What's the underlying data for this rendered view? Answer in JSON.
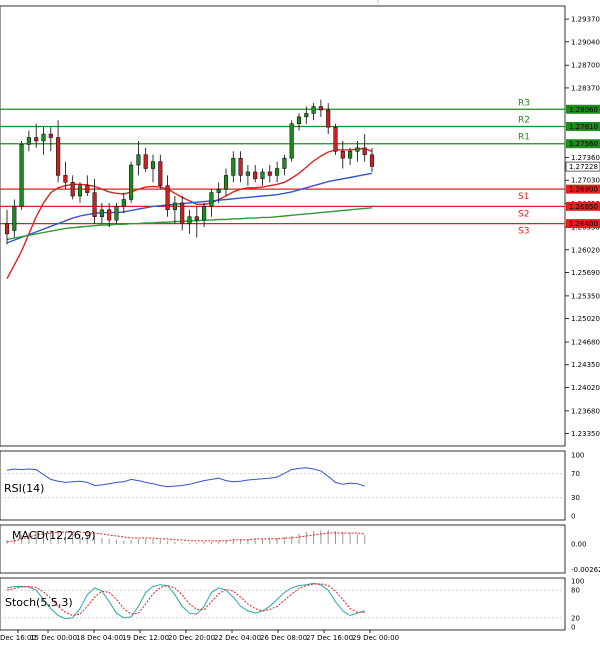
{
  "chart_data": {
    "type": "candlestick",
    "price_axis": {
      "ylim": [
        1.2317,
        1.2956
      ],
      "ticks": [
        "1.29370",
        "1.29040",
        "1.28700",
        "1.28370",
        "1.27360",
        "1.27030",
        "1.26690",
        "1.26350",
        "1.26020",
        "1.25690",
        "1.25350",
        "1.25020",
        "1.24680",
        "1.24350",
        "1.24020",
        "1.23680",
        "1.23350"
      ],
      "tick_values": [
        1.2937,
        1.2904,
        1.287,
        1.2837,
        1.2736,
        1.2703,
        1.2669,
        1.2635,
        1.2602,
        1.2569,
        1.2535,
        1.2502,
        1.2468,
        1.2435,
        1.2402,
        1.2368,
        1.2335
      ],
      "current_price": {
        "value": 1.27228,
        "label": "1.27228"
      }
    },
    "levels": [
      {
        "name": "R3",
        "value": 1.2806,
        "label": "1.28060",
        "color": "#1e8b1e"
      },
      {
        "name": "R2",
        "value": 1.2781,
        "label": "1.27810",
        "color": "#1e8b1e"
      },
      {
        "name": "R1",
        "value": 1.2756,
        "label": "1.27560",
        "color": "#1e8b1e"
      },
      {
        "name": "S1",
        "value": 1.269,
        "label": "1.26900",
        "color": "#e02020"
      },
      {
        "name": "S2",
        "value": 1.2665,
        "label": "1.26650",
        "color": "#e02020"
      },
      {
        "name": "S3",
        "value": 1.264,
        "label": "1.26400",
        "color": "#e02020"
      }
    ],
    "x_labels": [
      "Dec 16:00",
      "15 Dec 00:00",
      "18 Dec 04:00",
      "19 Dec 12:00",
      "20 Dec 20:00",
      "22 Dec 04:00",
      "26 Dec 08:00",
      "27 Dec 16:00",
      "29 Dec 00:00"
    ],
    "candles": [
      {
        "o": 1.264,
        "h": 1.266,
        "l": 1.261,
        "c": 1.2625
      },
      {
        "o": 1.263,
        "h": 1.2675,
        "l": 1.262,
        "c": 1.2665
      },
      {
        "o": 1.2665,
        "h": 1.276,
        "l": 1.266,
        "c": 1.2755
      },
      {
        "o": 1.2755,
        "h": 1.2775,
        "l": 1.2745,
        "c": 1.2765
      },
      {
        "o": 1.2765,
        "h": 1.2785,
        "l": 1.275,
        "c": 1.276
      },
      {
        "o": 1.276,
        "h": 1.278,
        "l": 1.274,
        "c": 1.277
      },
      {
        "o": 1.277,
        "h": 1.278,
        "l": 1.2745,
        "c": 1.2765
      },
      {
        "o": 1.2765,
        "h": 1.279,
        "l": 1.27,
        "c": 1.271
      },
      {
        "o": 1.271,
        "h": 1.273,
        "l": 1.269,
        "c": 1.27
      },
      {
        "o": 1.27,
        "h": 1.271,
        "l": 1.2675,
        "c": 1.268
      },
      {
        "o": 1.268,
        "h": 1.27,
        "l": 1.267,
        "c": 1.2695
      },
      {
        "o": 1.2695,
        "h": 1.271,
        "l": 1.268,
        "c": 1.2685
      },
      {
        "o": 1.2685,
        "h": 1.2705,
        "l": 1.264,
        "c": 1.265
      },
      {
        "o": 1.265,
        "h": 1.267,
        "l": 1.264,
        "c": 1.266
      },
      {
        "o": 1.266,
        "h": 1.267,
        "l": 1.2635,
        "c": 1.2645
      },
      {
        "o": 1.2645,
        "h": 1.267,
        "l": 1.264,
        "c": 1.2665
      },
      {
        "o": 1.2665,
        "h": 1.2685,
        "l": 1.2655,
        "c": 1.2675
      },
      {
        "o": 1.2675,
        "h": 1.273,
        "l": 1.267,
        "c": 1.2725
      },
      {
        "o": 1.2725,
        "h": 1.276,
        "l": 1.271,
        "c": 1.274
      },
      {
        "o": 1.274,
        "h": 1.275,
        "l": 1.2715,
        "c": 1.272
      },
      {
        "o": 1.272,
        "h": 1.274,
        "l": 1.27,
        "c": 1.273
      },
      {
        "o": 1.273,
        "h": 1.274,
        "l": 1.269,
        "c": 1.2695
      },
      {
        "o": 1.2695,
        "h": 1.271,
        "l": 1.265,
        "c": 1.266
      },
      {
        "o": 1.266,
        "h": 1.268,
        "l": 1.264,
        "c": 1.267
      },
      {
        "o": 1.267,
        "h": 1.268,
        "l": 1.263,
        "c": 1.264
      },
      {
        "o": 1.264,
        "h": 1.266,
        "l": 1.2625,
        "c": 1.265
      },
      {
        "o": 1.265,
        "h": 1.2665,
        "l": 1.262,
        "c": 1.2645
      },
      {
        "o": 1.2645,
        "h": 1.267,
        "l": 1.2635,
        "c": 1.2665
      },
      {
        "o": 1.2665,
        "h": 1.269,
        "l": 1.265,
        "c": 1.2685
      },
      {
        "o": 1.2685,
        "h": 1.27,
        "l": 1.267,
        "c": 1.269
      },
      {
        "o": 1.269,
        "h": 1.272,
        "l": 1.268,
        "c": 1.271
      },
      {
        "o": 1.271,
        "h": 1.2745,
        "l": 1.27,
        "c": 1.2735
      },
      {
        "o": 1.2735,
        "h": 1.2745,
        "l": 1.27,
        "c": 1.271
      },
      {
        "o": 1.271,
        "h": 1.2725,
        "l": 1.2695,
        "c": 1.2715
      },
      {
        "o": 1.2715,
        "h": 1.2725,
        "l": 1.27,
        "c": 1.2705
      },
      {
        "o": 1.2705,
        "h": 1.272,
        "l": 1.2695,
        "c": 1.2715
      },
      {
        "o": 1.2715,
        "h": 1.2725,
        "l": 1.27,
        "c": 1.271
      },
      {
        "o": 1.271,
        "h": 1.273,
        "l": 1.27,
        "c": 1.272
      },
      {
        "o": 1.272,
        "h": 1.274,
        "l": 1.271,
        "c": 1.2735
      },
      {
        "o": 1.2735,
        "h": 1.279,
        "l": 1.273,
        "c": 1.2785
      },
      {
        "o": 1.2785,
        "h": 1.28,
        "l": 1.2775,
        "c": 1.2795
      },
      {
        "o": 1.2795,
        "h": 1.281,
        "l": 1.2785,
        "c": 1.28
      },
      {
        "o": 1.28,
        "h": 1.2815,
        "l": 1.279,
        "c": 1.281
      },
      {
        "o": 1.281,
        "h": 1.282,
        "l": 1.2795,
        "c": 1.2805
      },
      {
        "o": 1.2805,
        "h": 1.2815,
        "l": 1.277,
        "c": 1.278
      },
      {
        "o": 1.278,
        "h": 1.2785,
        "l": 1.274,
        "c": 1.2745
      },
      {
        "o": 1.2745,
        "h": 1.276,
        "l": 1.272,
        "c": 1.2735
      },
      {
        "o": 1.2735,
        "h": 1.275,
        "l": 1.2725,
        "c": 1.2745
      },
      {
        "o": 1.2745,
        "h": 1.276,
        "l": 1.273,
        "c": 1.275
      },
      {
        "o": 1.275,
        "h": 1.277,
        "l": 1.273,
        "c": 1.274
      },
      {
        "o": 1.274,
        "h": 1.275,
        "l": 1.2715,
        "c": 1.2723
      }
    ],
    "moving_averages": [
      {
        "color": "#e02020",
        "values": [
          1.256,
          1.258,
          1.26,
          1.2625,
          1.265,
          1.267,
          1.2685,
          1.2692,
          1.2695,
          1.2697,
          1.2697,
          1.2696,
          1.2694,
          1.269,
          1.2686,
          1.2684,
          1.2683,
          1.2686,
          1.269,
          1.2693,
          1.2694,
          1.2693,
          1.269,
          1.2684,
          1.2678,
          1.2673,
          1.2668,
          1.2668,
          1.267,
          1.2675,
          1.268,
          1.2686,
          1.269,
          1.2692,
          1.2692,
          1.2693,
          1.2695,
          1.2697,
          1.27,
          1.2706,
          1.2713,
          1.2722,
          1.2731,
          1.2738,
          1.2744,
          1.2747,
          1.2747,
          1.2747,
          1.2748,
          1.2749,
          1.2745
        ]
      },
      {
        "color": "#3355cc",
        "values": [
          1.2612,
          1.2616,
          1.262,
          1.2624,
          1.2628,
          1.2632,
          1.2636,
          1.264,
          1.2644,
          1.2648,
          1.2651,
          1.2653,
          1.2655,
          1.2656,
          1.2656,
          1.2656,
          1.2657,
          1.2659,
          1.2661,
          1.2663,
          1.2665,
          1.2666,
          1.2667,
          1.2668,
          1.2669,
          1.267,
          1.2671,
          1.2672,
          1.2673,
          1.2674,
          1.2675,
          1.2676,
          1.2677,
          1.2678,
          1.2679,
          1.268,
          1.2681,
          1.2682,
          1.2684,
          1.2686,
          1.2689,
          1.2692,
          1.2695,
          1.2698,
          1.2701,
          1.2703,
          1.2705,
          1.2707,
          1.2709,
          1.2711,
          1.2713
        ]
      },
      {
        "color": "#2e9a3a",
        "values": [
          1.2617,
          1.2619,
          1.2621,
          1.2623,
          1.2625,
          1.2627,
          1.2629,
          1.2631,
          1.2633,
          1.2634,
          1.2635,
          1.2636,
          1.2637,
          1.2638,
          1.2638,
          1.2639,
          1.2639,
          1.264,
          1.264,
          1.2641,
          1.2641,
          1.2642,
          1.2642,
          1.2643,
          1.2643,
          1.2644,
          1.2644,
          1.2645,
          1.2645,
          1.2646,
          1.2646,
          1.2647,
          1.2647,
          1.2648,
          1.2648,
          1.2649,
          1.2649,
          1.265,
          1.2651,
          1.2652,
          1.2653,
          1.2654,
          1.2655,
          1.2656,
          1.2657,
          1.2658,
          1.2659,
          1.266,
          1.2661,
          1.2662,
          1.2663
        ]
      }
    ],
    "rsi": {
      "label": "RSI(14)",
      "ticks": [
        "100",
        "70",
        "30",
        "0"
      ],
      "tick_values": [
        100,
        70,
        30,
        0
      ],
      "color": "#3355cc",
      "values": [
        75,
        77,
        76,
        77,
        76,
        68,
        60,
        57,
        55,
        56,
        57,
        55,
        50,
        51,
        53,
        55,
        56,
        60,
        58,
        55,
        53,
        50,
        48,
        49,
        50,
        52,
        55,
        58,
        60,
        62,
        58,
        56,
        57,
        59,
        60,
        61,
        62,
        64,
        70,
        76,
        78,
        79,
        77,
        74,
        65,
        55,
        52,
        54,
        53,
        49
      ]
    },
    "macd": {
      "label": "MACD(12,26,9)",
      "ticks": [
        "0.00",
        "-0.00262"
      ],
      "histogram": [
        0.0004,
        0.0006,
        0.0009,
        0.0011,
        0.0013,
        0.0014,
        0.0014,
        0.0013,
        0.0012,
        0.0011,
        0.001,
        0.0009,
        0.0008,
        0.0006,
        0.0005,
        0.0004,
        0.0003,
        0.0004,
        0.0005,
        0.0005,
        0.0005,
        0.0004,
        0.0003,
        0.0002,
        0.0001,
        0.0001,
        0.0001,
        0.0002,
        0.0002,
        0.0003,
        0.0004,
        0.0005,
        0.0005,
        0.0005,
        0.0005,
        0.0005,
        0.0006,
        0.0006,
        0.0007,
        0.0008,
        0.001,
        0.0012,
        0.0013,
        0.0014,
        0.0014,
        0.0013,
        0.0012,
        0.0011,
        0.001,
        0.0009
      ],
      "signal": [
        0.0002,
        0.0003,
        0.0005,
        0.0007,
        0.0009,
        0.001,
        0.0011,
        0.0012,
        0.0012,
        0.0012,
        0.0012,
        0.0011,
        0.0011,
        0.001,
        0.0009,
        0.0008,
        0.0007,
        0.0006,
        0.0006,
        0.0006,
        0.0006,
        0.0005,
        0.0005,
        0.0004,
        0.0004,
        0.0003,
        0.0003,
        0.0003,
        0.0003,
        0.0003,
        0.0003,
        0.0004,
        0.0004,
        0.0004,
        0.0005,
        0.0005,
        0.0005,
        0.0005,
        0.0006,
        0.0006,
        0.0007,
        0.0008,
        0.0009,
        0.001,
        0.0011,
        0.0011,
        0.0011,
        0.0011,
        0.0011,
        0.001
      ]
    },
    "stoch": {
      "label": "Stoch(5,5,3)",
      "ticks": [
        "100",
        "80",
        "20",
        "0"
      ],
      "tick_values": [
        100,
        80,
        20,
        0
      ],
      "main": [
        85,
        88,
        88,
        87,
        80,
        60,
        40,
        25,
        18,
        20,
        40,
        70,
        85,
        78,
        55,
        30,
        20,
        22,
        45,
        75,
        88,
        92,
        90,
        70,
        45,
        30,
        28,
        45,
        75,
        85,
        80,
        65,
        45,
        35,
        30,
        35,
        45,
        60,
        75,
        85,
        90,
        92,
        95,
        92,
        80,
        55,
        35,
        25,
        30,
        35
      ],
      "signal": [
        80,
        84,
        87,
        88,
        86,
        76,
        62,
        45,
        32,
        25,
        28,
        45,
        65,
        78,
        75,
        60,
        40,
        28,
        30,
        50,
        72,
        86,
        90,
        85,
        70,
        50,
        38,
        38,
        55,
        72,
        82,
        78,
        65,
        50,
        40,
        35,
        38,
        45,
        58,
        72,
        84,
        90,
        93,
        94,
        90,
        78,
        60,
        40,
        32,
        32
      ]
    }
  }
}
